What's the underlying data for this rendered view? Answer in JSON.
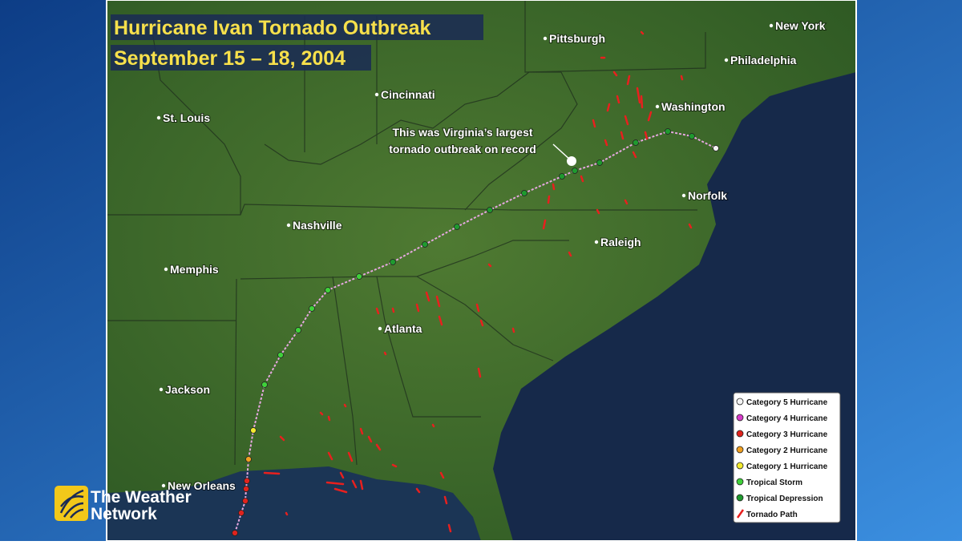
{
  "title": {
    "line1": "Hurricane Ivan Tornado Outbreak",
    "line2": "September 15 – 18, 2004"
  },
  "annotation": {
    "line1": "This was Virginia’s largest",
    "line2": "tornado outbreak on record"
  },
  "cities": [
    "Pittsburgh",
    "New York",
    "Philadelphia",
    "Cincinnati",
    "St. Louis",
    "Washington",
    "Norfolk",
    "Nashville",
    "Raleigh",
    "Memphis",
    "Atlanta",
    "Jackson",
    "New Orleans"
  ],
  "legend": [
    {
      "label": "Category 5 Hurricane",
      "color": "#f4f4f4"
    },
    {
      "label": "Category 4 Hurricane",
      "color": "#d63bc9"
    },
    {
      "label": "Category 3 Hurricane",
      "color": "#e0231d"
    },
    {
      "label": "Category 2 Hurricane",
      "color": "#f0a021"
    },
    {
      "label": "Category 1 Hurricane",
      "color": "#f2ea2e"
    },
    {
      "label": "Tropical Storm",
      "color": "#3fd13a"
    },
    {
      "label": "Tropical Depression",
      "color": "#1f9a2f"
    },
    {
      "label": "Tornado Path",
      "color": "#e8201e"
    }
  ],
  "logo": {
    "line1": "The Weather",
    "line2": "Network"
  }
}
